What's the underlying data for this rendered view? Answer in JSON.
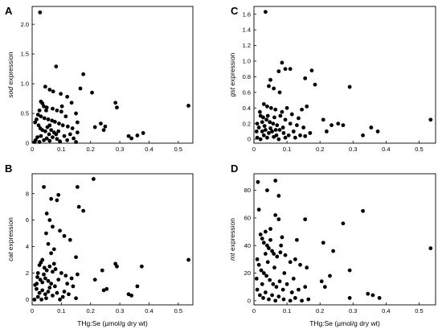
{
  "chart_data": [
    {
      "type": "scatter",
      "panel_label": "A",
      "xlabel": "",
      "ylabel_italic": "sod",
      "ylabel_rest": " expression",
      "xlim": [
        0,
        0.55
      ],
      "ylim": [
        0,
        2.3
      ],
      "xticks": [
        "0",
        "0.1",
        "0.2",
        "0.3",
        "0.4",
        "0.5"
      ],
      "xtick_values": [
        0,
        0.1,
        0.2,
        0.3,
        0.4,
        0.5
      ],
      "yticks": [
        "0",
        "0.5",
        "1.0",
        "1.5",
        "2.0"
      ],
      "ytick_values": [
        0,
        0.5,
        1.0,
        1.5,
        2.0
      ],
      "points": [
        [
          0.027,
          2.2
        ],
        [
          0.082,
          1.29
        ],
        [
          0.175,
          1.16
        ],
        [
          0.165,
          0.92
        ],
        [
          0.205,
          0.85
        ],
        [
          0.045,
          0.95
        ],
        [
          0.06,
          0.9
        ],
        [
          0.072,
          0.87
        ],
        [
          0.098,
          0.83
        ],
        [
          0.12,
          0.78
        ],
        [
          0.135,
          0.68
        ],
        [
          0.102,
          0.62
        ],
        [
          0.285,
          0.68
        ],
        [
          0.29,
          0.6
        ],
        [
          0.535,
          0.63
        ],
        [
          0.03,
          0.7
        ],
        [
          0.035,
          0.67
        ],
        [
          0.04,
          0.62
        ],
        [
          0.05,
          0.6
        ],
        [
          0.07,
          0.58
        ],
        [
          0.085,
          0.55
        ],
        [
          0.1,
          0.53
        ],
        [
          0.15,
          0.5
        ],
        [
          0.155,
          0.35
        ],
        [
          0.025,
          0.55
        ],
        [
          0.02,
          0.48
        ],
        [
          0.03,
          0.45
        ],
        [
          0.042,
          0.42
        ],
        [
          0.055,
          0.4
        ],
        [
          0.068,
          0.38
        ],
        [
          0.078,
          0.36
        ],
        [
          0.092,
          0.33
        ],
        [
          0.105,
          0.3
        ],
        [
          0.122,
          0.28
        ],
        [
          0.138,
          0.25
        ],
        [
          0.235,
          0.33
        ],
        [
          0.25,
          0.28
        ],
        [
          0.245,
          0.22
        ],
        [
          0.215,
          0.27
        ],
        [
          0.01,
          0.35
        ],
        [
          0.015,
          0.4
        ],
        [
          0.022,
          0.3
        ],
        [
          0.028,
          0.25
        ],
        [
          0.035,
          0.22
        ],
        [
          0.045,
          0.2
        ],
        [
          0.052,
          0.27
        ],
        [
          0.06,
          0.3
        ],
        [
          0.065,
          0.22
        ],
        [
          0.075,
          0.18
        ],
        [
          0.082,
          0.15
        ],
        [
          0.09,
          0.2
        ],
        [
          0.11,
          0.12
        ],
        [
          0.13,
          0.15
        ],
        [
          0.142,
          0.08
        ],
        [
          0.018,
          0.1
        ],
        [
          0.03,
          0.12
        ],
        [
          0.04,
          0.05
        ],
        [
          0.05,
          0.08
        ],
        [
          0.06,
          0.04
        ],
        [
          0.07,
          0.1
        ],
        [
          0.085,
          0.07
        ],
        [
          0.095,
          0.03
        ],
        [
          0.12,
          0.05
        ],
        [
          0.15,
          0.02
        ],
        [
          0.33,
          0.12
        ],
        [
          0.34,
          0.08
        ],
        [
          0.36,
          0.13
        ],
        [
          0.38,
          0.17
        ],
        [
          0.012,
          0.05
        ],
        [
          0.155,
          0.18
        ],
        [
          0.025,
          0.02
        ],
        [
          0.058,
          0.15
        ],
        [
          0.048,
          0.55
        ],
        [
          0.115,
          0.45
        ],
        [
          0.008,
          0.02
        ]
      ]
    },
    {
      "type": "scatter",
      "panel_label": "C",
      "xlabel": "",
      "ylabel_italic": "gst",
      "ylabel_rest": " expression",
      "xlim": [
        0,
        0.55
      ],
      "ylim": [
        -0.05,
        1.7
      ],
      "xticks": [
        "0",
        "0.1",
        "0.2",
        "0.3",
        "0.4",
        "0.5"
      ],
      "xtick_values": [
        0,
        0.1,
        0.2,
        0.3,
        0.4,
        0.5
      ],
      "yticks": [
        "0",
        "0.2",
        "0.4",
        "0.6",
        "0.8",
        "1.0",
        "1.2",
        "1.4",
        "1.6"
      ],
      "ytick_values": [
        0,
        0.2,
        0.4,
        0.6,
        0.8,
        1.0,
        1.2,
        1.4,
        1.6
      ],
      "points": [
        [
          0.035,
          1.63
        ],
        [
          0.085,
          0.98
        ],
        [
          0.095,
          0.9
        ],
        [
          0.11,
          0.9
        ],
        [
          0.075,
          0.87
        ],
        [
          0.155,
          0.78
        ],
        [
          0.175,
          0.88
        ],
        [
          0.185,
          0.7
        ],
        [
          0.05,
          0.76
        ],
        [
          0.045,
          0.68
        ],
        [
          0.06,
          0.65
        ],
        [
          0.078,
          0.6
        ],
        [
          0.29,
          0.67
        ],
        [
          0.535,
          0.25
        ],
        [
          0.03,
          0.45
        ],
        [
          0.04,
          0.42
        ],
        [
          0.052,
          0.4
        ],
        [
          0.065,
          0.38
        ],
        [
          0.085,
          0.35
        ],
        [
          0.1,
          0.4
        ],
        [
          0.145,
          0.38
        ],
        [
          0.16,
          0.42
        ],
        [
          0.02,
          0.3
        ],
        [
          0.028,
          0.28
        ],
        [
          0.038,
          0.25
        ],
        [
          0.048,
          0.22
        ],
        [
          0.058,
          0.2
        ],
        [
          0.07,
          0.18
        ],
        [
          0.08,
          0.3
        ],
        [
          0.095,
          0.25
        ],
        [
          0.11,
          0.2
        ],
        [
          0.13,
          0.18
        ],
        [
          0.15,
          0.15
        ],
        [
          0.21,
          0.25
        ],
        [
          0.235,
          0.18
        ],
        [
          0.255,
          0.2
        ],
        [
          0.27,
          0.18
        ],
        [
          0.33,
          0.05
        ],
        [
          0.355,
          0.15
        ],
        [
          0.375,
          0.1
        ],
        [
          0.01,
          0.2
        ],
        [
          0.015,
          0.15
        ],
        [
          0.025,
          0.1
        ],
        [
          0.035,
          0.12
        ],
        [
          0.045,
          0.08
        ],
        [
          0.055,
          0.1
        ],
        [
          0.068,
          0.05
        ],
        [
          0.078,
          0.12
        ],
        [
          0.09,
          0.08
        ],
        [
          0.105,
          0.05
        ],
        [
          0.12,
          0.1
        ],
        [
          0.14,
          0.05
        ],
        [
          0.17,
          0.08
        ],
        [
          0.22,
          0.1
        ],
        [
          0.01,
          0.02
        ],
        [
          0.02,
          0.0
        ],
        [
          0.03,
          0.05
        ],
        [
          0.04,
          0.02
        ],
        [
          0.06,
          0.03
        ],
        [
          0.075,
          0.0
        ],
        [
          0.095,
          0.02
        ],
        [
          0.125,
          0.02
        ],
        [
          0.155,
          0.04
        ],
        [
          0.018,
          0.35
        ],
        [
          0.025,
          0.22
        ],
        [
          0.042,
          0.3
        ],
        [
          0.062,
          0.28
        ],
        [
          0.088,
          0.15
        ],
        [
          0.115,
          0.32
        ],
        [
          0.135,
          0.27
        ],
        [
          0.032,
          0.17
        ],
        [
          0.05,
          0.14
        ],
        [
          0.066,
          0.12
        ],
        [
          0.008,
          0.1
        ]
      ]
    },
    {
      "type": "scatter",
      "panel_label": "B",
      "xlabel": "THg:Se (µmol/g dry wt)",
      "ylabel_italic": "cat",
      "ylabel_rest": " expression",
      "xlim": [
        0,
        0.55
      ],
      "ylim": [
        -0.4,
        9.5
      ],
      "xticks": [
        "0",
        "0.1",
        "0.2",
        "0.3",
        "0.4",
        "0.5"
      ],
      "xtick_values": [
        0,
        0.1,
        0.2,
        0.3,
        0.4,
        0.5
      ],
      "yticks": [
        "0",
        "2",
        "4",
        "6",
        "8"
      ],
      "ytick_values": [
        0,
        2,
        4,
        6,
        8
      ],
      "points": [
        [
          0.21,
          9.1
        ],
        [
          0.04,
          8.5
        ],
        [
          0.155,
          8.5
        ],
        [
          0.065,
          7.6
        ],
        [
          0.09,
          7.9
        ],
        [
          0.085,
          7.5
        ],
        [
          0.16,
          7.0
        ],
        [
          0.175,
          6.7
        ],
        [
          0.05,
          6.5
        ],
        [
          0.06,
          6.0
        ],
        [
          0.07,
          5.5
        ],
        [
          0.095,
          5.2
        ],
        [
          0.048,
          5.0
        ],
        [
          0.11,
          4.8
        ],
        [
          0.13,
          4.5
        ],
        [
          0.055,
          4.2
        ],
        [
          0.075,
          3.8
        ],
        [
          0.065,
          3.5
        ],
        [
          0.15,
          3.2
        ],
        [
          0.535,
          3.0
        ],
        [
          0.285,
          2.7
        ],
        [
          0.29,
          2.5
        ],
        [
          0.375,
          2.5
        ],
        [
          0.24,
          2.2
        ],
        [
          0.035,
          3.0
        ],
        [
          0.03,
          2.8
        ],
        [
          0.025,
          2.6
        ],
        [
          0.042,
          2.4
        ],
        [
          0.05,
          2.2
        ],
        [
          0.06,
          2.5
        ],
        [
          0.07,
          2.1
        ],
        [
          0.08,
          2.3
        ],
        [
          0.1,
          2.0
        ],
        [
          0.115,
          1.8
        ],
        [
          0.135,
          1.6
        ],
        [
          0.155,
          1.9
        ],
        [
          0.02,
          2.0
        ],
        [
          0.018,
          1.7
        ],
        [
          0.028,
          1.5
        ],
        [
          0.035,
          1.3
        ],
        [
          0.045,
          1.6
        ],
        [
          0.055,
          1.4
        ],
        [
          0.065,
          1.2
        ],
        [
          0.078,
          1.0
        ],
        [
          0.09,
          1.5
        ],
        [
          0.12,
          1.2
        ],
        [
          0.14,
          1.0
        ],
        [
          0.215,
          1.5
        ],
        [
          0.245,
          0.7
        ],
        [
          0.255,
          0.8
        ],
        [
          0.33,
          0.4
        ],
        [
          0.34,
          0.3
        ],
        [
          0.36,
          1.0
        ],
        [
          0.01,
          1.1
        ],
        [
          0.015,
          0.8
        ],
        [
          0.025,
          0.5
        ],
        [
          0.035,
          0.7
        ],
        [
          0.045,
          0.4
        ],
        [
          0.055,
          0.6
        ],
        [
          0.07,
          0.3
        ],
        [
          0.085,
          0.5
        ],
        [
          0.105,
          0.2
        ],
        [
          0.125,
          0.4
        ],
        [
          0.15,
          0.1
        ],
        [
          0.008,
          0.0
        ],
        [
          0.02,
          0.2
        ],
        [
          0.032,
          0.0
        ],
        [
          0.048,
          0.1
        ],
        [
          0.06,
          0.9
        ],
        [
          0.095,
          0.0
        ],
        [
          0.11,
          0.6
        ],
        [
          0.04,
          1.9
        ],
        [
          0.075,
          2.7
        ],
        [
          0.016,
          1.2
        ]
      ]
    },
    {
      "type": "scatter",
      "panel_label": "D",
      "xlabel": "THg:Se (µmol/g dry wt)",
      "ylabel_italic": "mt",
      "ylabel_rest": " expression",
      "xlim": [
        0,
        0.55
      ],
      "ylim": [
        -3,
        92
      ],
      "xticks": [
        "0",
        "0.1",
        "0.2",
        "0.3",
        "0.4",
        "0.5"
      ],
      "xtick_values": [
        0,
        0.1,
        0.2,
        0.3,
        0.4,
        0.5
      ],
      "yticks": [
        "0",
        "20",
        "40",
        "60",
        "80"
      ],
      "ytick_values": [
        0,
        20,
        40,
        60,
        80
      ],
      "points": [
        [
          0.012,
          86
        ],
        [
          0.065,
          87
        ],
        [
          0.04,
          80
        ],
        [
          0.075,
          76
        ],
        [
          0.015,
          66
        ],
        [
          0.065,
          62
        ],
        [
          0.075,
          59
        ],
        [
          0.155,
          59
        ],
        [
          0.27,
          56
        ],
        [
          0.33,
          65
        ],
        [
          0.05,
          52
        ],
        [
          0.035,
          50
        ],
        [
          0.085,
          46
        ],
        [
          0.13,
          44
        ],
        [
          0.21,
          42
        ],
        [
          0.535,
          38
        ],
        [
          0.02,
          48
        ],
        [
          0.025,
          45
        ],
        [
          0.03,
          42
        ],
        [
          0.04,
          40
        ],
        [
          0.045,
          38
        ],
        [
          0.055,
          36
        ],
        [
          0.06,
          34
        ],
        [
          0.07,
          32
        ],
        [
          0.08,
          35
        ],
        [
          0.095,
          33
        ],
        [
          0.11,
          28
        ],
        [
          0.125,
          30
        ],
        [
          0.14,
          26
        ],
        [
          0.16,
          24
        ],
        [
          0.24,
          36
        ],
        [
          0.23,
          18
        ],
        [
          0.29,
          22
        ],
        [
          0.01,
          30
        ],
        [
          0.015,
          26
        ],
        [
          0.022,
          22
        ],
        [
          0.03,
          20
        ],
        [
          0.038,
          18
        ],
        [
          0.048,
          15
        ],
        [
          0.058,
          12
        ],
        [
          0.068,
          10
        ],
        [
          0.078,
          14
        ],
        [
          0.088,
          8
        ],
        [
          0.1,
          12
        ],
        [
          0.115,
          6
        ],
        [
          0.135,
          8
        ],
        [
          0.155,
          10
        ],
        [
          0.205,
          14
        ],
        [
          0.215,
          10
        ],
        [
          0.29,
          2
        ],
        [
          0.345,
          5
        ],
        [
          0.36,
          4
        ],
        [
          0.38,
          2
        ],
        [
          0.01,
          8
        ],
        [
          0.018,
          4
        ],
        [
          0.028,
          2
        ],
        [
          0.035,
          6
        ],
        [
          0.045,
          1
        ],
        [
          0.055,
          4
        ],
        [
          0.065,
          0
        ],
        [
          0.075,
          3
        ],
        [
          0.09,
          1
        ],
        [
          0.11,
          0
        ],
        [
          0.125,
          2
        ],
        [
          0.145,
          0
        ],
        [
          0.165,
          1
        ],
        [
          0.008,
          16
        ],
        [
          0.042,
          28
        ],
        [
          0.062,
          24
        ],
        [
          0.092,
          20
        ],
        [
          0.035,
          34
        ],
        [
          0.05,
          44
        ],
        [
          0.025,
          12
        ],
        [
          0.082,
          40
        ],
        [
          0.12,
          16
        ]
      ]
    }
  ]
}
